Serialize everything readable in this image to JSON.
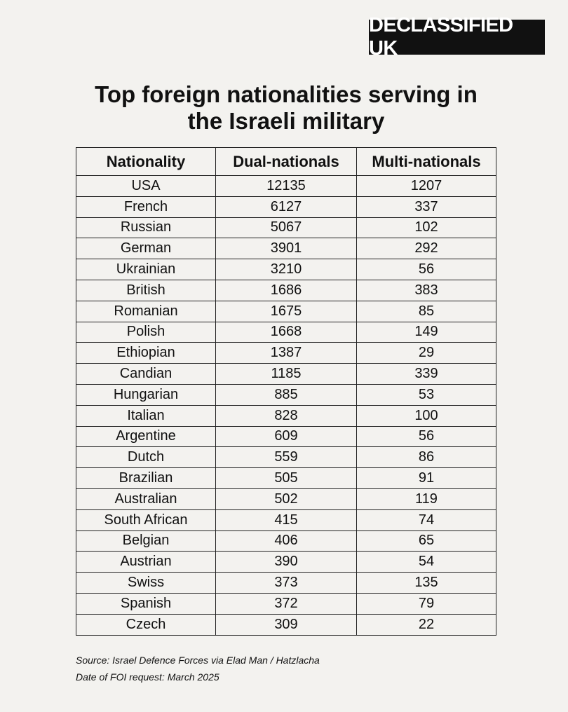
{
  "header": {
    "brand": "DECLASSIFIED UK",
    "title": "Top foreign nationalities serving in the Israeli military"
  },
  "table": {
    "columns": [
      "Nationality",
      "Dual-nationals",
      "Multi-nationals"
    ],
    "rows": [
      [
        "USA",
        12135,
        1207
      ],
      [
        "French",
        6127,
        337
      ],
      [
        "Russian",
        5067,
        102
      ],
      [
        "German",
        3901,
        292
      ],
      [
        "Ukrainian",
        3210,
        56
      ],
      [
        "British",
        1686,
        383
      ],
      [
        "Romanian",
        1675,
        85
      ],
      [
        "Polish",
        1668,
        149
      ],
      [
        "Ethiopian",
        1387,
        29
      ],
      [
        "Candian",
        1185,
        339
      ],
      [
        "Hungarian",
        885,
        53
      ],
      [
        "Italian",
        828,
        100
      ],
      [
        "Argentine",
        609,
        56
      ],
      [
        "Dutch",
        559,
        86
      ],
      [
        "Brazilian",
        505,
        91
      ],
      [
        "Australian",
        502,
        119
      ],
      [
        "South African",
        415,
        74
      ],
      [
        "Belgian",
        406,
        65
      ],
      [
        "Austrian",
        390,
        54
      ],
      [
        "Swiss",
        373,
        135
      ],
      [
        "Spanish",
        372,
        79
      ],
      [
        "Czech",
        309,
        22
      ]
    ]
  },
  "footer": {
    "source": "Source: Israel Defence Forces via Elad Man / Hatzlacha",
    "date": "Date of FOI request: March 2025"
  }
}
